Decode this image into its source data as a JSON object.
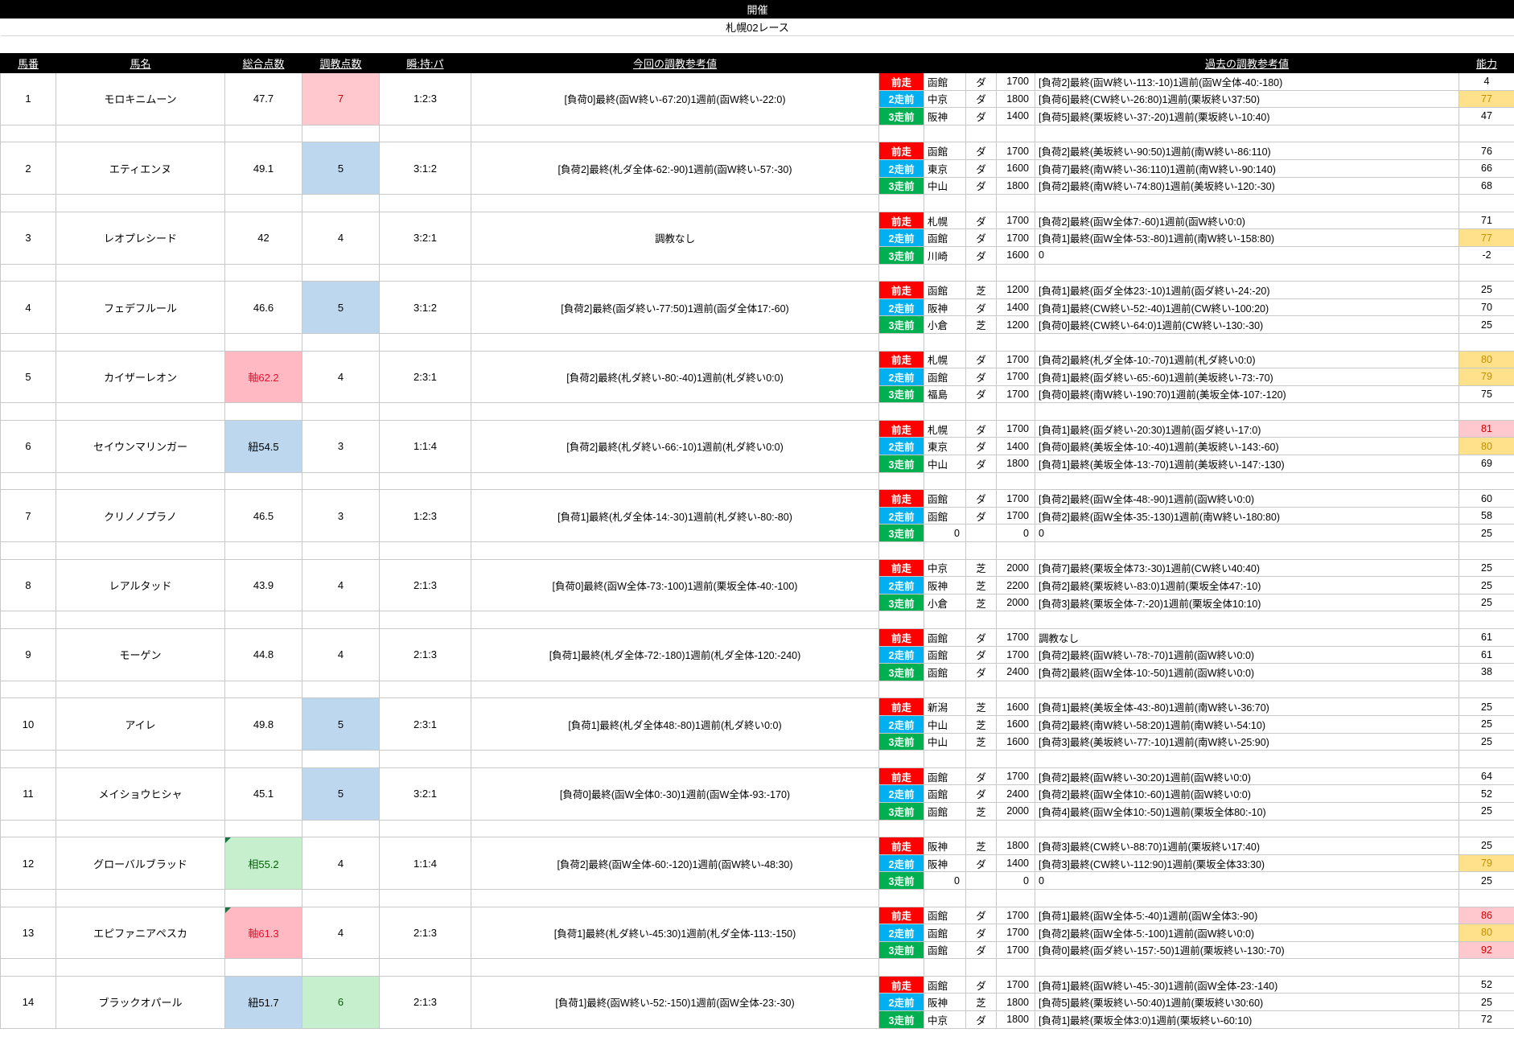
{
  "header": {
    "title": "開催",
    "race": "札幌02レース"
  },
  "columns": {
    "num": "馬番",
    "name": "馬名",
    "total": "総合点数",
    "training": "調教点数",
    "ratio": "瞬:持:パ",
    "current": "今回の調教参考値",
    "past": "過去の調教参考値",
    "ability": "能力"
  },
  "run_labels": [
    "前走",
    "2走前",
    "3走前"
  ],
  "colors": {
    "badge_last_run": "#ff0000",
    "badge_second_run": "#00b0f0",
    "badge_third_run": "#00b050",
    "highlight_pink": "#ffc7ce",
    "highlight_blue": "#bdd7ee",
    "highlight_green": "#c6efce",
    "highlight_yellow": "#ffe18c"
  },
  "horses": [
    {
      "num": "1",
      "name": "モロキニムーン",
      "total": "47.7",
      "total_style": "",
      "marker": false,
      "training": "7",
      "training_style": "pink",
      "ratio": "1:2:3",
      "current": "[負荷0]最終(函W終い-67:20)1週前(函W終い-22:0)",
      "past": [
        {
          "track": "函館",
          "surface": "ダ",
          "dist": "1700",
          "text": "[負荷2]最終(函W終い-113:-10)1週前(函W全体-40:-180)",
          "ability": "4",
          "ability_style": ""
        },
        {
          "track": "中京",
          "surface": "ダ",
          "dist": "1800",
          "text": "[負荷6]最終(CW終い-26:80)1週前(栗坂終い37:50)",
          "ability": "77",
          "ability_style": "yellow"
        },
        {
          "track": "阪神",
          "surface": "ダ",
          "dist": "1400",
          "text": "[負荷5]最終(栗坂終い-37:-20)1週前(栗坂終い-10:40)",
          "ability": "47",
          "ability_style": ""
        }
      ]
    },
    {
      "num": "2",
      "name": "エティエンヌ",
      "total": "49.1",
      "total_style": "",
      "marker": false,
      "training": "5",
      "training_style": "blue",
      "ratio": "3:1:2",
      "current": "[負荷2]最終(札ダ全体-62:-90)1週前(函W終い-57:-30)",
      "past": [
        {
          "track": "函館",
          "surface": "ダ",
          "dist": "1700",
          "text": "[負荷2]最終(美坂終い-90:50)1週前(南W終い-86:110)",
          "ability": "76",
          "ability_style": ""
        },
        {
          "track": "東京",
          "surface": "ダ",
          "dist": "1600",
          "text": "[負荷7]最終(南W終い-36:110)1週前(南W終い-90:140)",
          "ability": "66",
          "ability_style": ""
        },
        {
          "track": "中山",
          "surface": "ダ",
          "dist": "1800",
          "text": "[負荷2]最終(南W終い-74:80)1週前(美坂終い-120:-30)",
          "ability": "68",
          "ability_style": ""
        }
      ]
    },
    {
      "num": "3",
      "name": "レオプレシード",
      "total": "42",
      "total_style": "",
      "marker": false,
      "training": "4",
      "training_style": "",
      "ratio": "3:2:1",
      "current": "調教なし",
      "past": [
        {
          "track": "札幌",
          "surface": "ダ",
          "dist": "1700",
          "text": "[負荷2]最終(函W全体7:-60)1週前(函W終い0:0)",
          "ability": "71",
          "ability_style": ""
        },
        {
          "track": "函館",
          "surface": "ダ",
          "dist": "1700",
          "text": "[負荷1]最終(函W全体-53:-80)1週前(南W終い-158:80)",
          "ability": "77",
          "ability_style": "yellow"
        },
        {
          "track": "川崎",
          "surface": "ダ",
          "dist": "1600",
          "text": "0",
          "ability": "-2",
          "ability_style": ""
        }
      ]
    },
    {
      "num": "4",
      "name": "フェデフルール",
      "total": "46.6",
      "total_style": "",
      "marker": false,
      "training": "5",
      "training_style": "blue",
      "ratio": "3:1:2",
      "current": "[負荷2]最終(函ダ終い-77:50)1週前(函ダ全体17:-60)",
      "past": [
        {
          "track": "函館",
          "surface": "芝",
          "dist": "1200",
          "text": "[負荷1]最終(函ダ全体23:-10)1週前(函ダ終い-24:-20)",
          "ability": "25",
          "ability_style": ""
        },
        {
          "track": "阪神",
          "surface": "ダ",
          "dist": "1400",
          "text": "[負荷1]最終(CW終い-52:-40)1週前(CW終い-100:20)",
          "ability": "70",
          "ability_style": ""
        },
        {
          "track": "小倉",
          "surface": "芝",
          "dist": "1200",
          "text": "[負荷0]最終(CW終い-64:0)1週前(CW終い-130:-30)",
          "ability": "25",
          "ability_style": ""
        }
      ]
    },
    {
      "num": "5",
      "name": "カイザーレオン",
      "total": "軸62.2",
      "total_style": "pink",
      "marker": false,
      "training": "4",
      "training_style": "",
      "ratio": "2:3:1",
      "current": "[負荷2]最終(札ダ終い-80:-40)1週前(札ダ終い0:0)",
      "past": [
        {
          "track": "札幌",
          "surface": "ダ",
          "dist": "1700",
          "text": "[負荷2]最終(札ダ全体-10:-70)1週前(札ダ終い0:0)",
          "ability": "80",
          "ability_style": "yellow"
        },
        {
          "track": "函館",
          "surface": "ダ",
          "dist": "1700",
          "text": "[負荷1]最終(函ダ終い-65:-60)1週前(美坂終い-73:-70)",
          "ability": "79",
          "ability_style": "yellow"
        },
        {
          "track": "福島",
          "surface": "ダ",
          "dist": "1700",
          "text": "[負荷0]最終(南W終い-190:70)1週前(美坂全体-107:-120)",
          "ability": "75",
          "ability_style": ""
        }
      ]
    },
    {
      "num": "6",
      "name": "セイウンマリンガー",
      "total": "紐54.5",
      "total_style": "blue",
      "marker": false,
      "training": "3",
      "training_style": "",
      "ratio": "1:1:4",
      "current": "[負荷2]最終(札ダ終い-66:-10)1週前(札ダ終い0:0)",
      "past": [
        {
          "track": "札幌",
          "surface": "ダ",
          "dist": "1700",
          "text": "[負荷1]最終(函ダ終い-20:30)1週前(函ダ終い-17:0)",
          "ability": "81",
          "ability_style": "pink"
        },
        {
          "track": "東京",
          "surface": "ダ",
          "dist": "1400",
          "text": "[負荷0]最終(美坂全体-10:-40)1週前(美坂終い-143:-60)",
          "ability": "80",
          "ability_style": "yellow"
        },
        {
          "track": "中山",
          "surface": "ダ",
          "dist": "1800",
          "text": "[負荷1]最終(美坂全体-13:-70)1週前(美坂終い-147:-130)",
          "ability": "69",
          "ability_style": ""
        }
      ]
    },
    {
      "num": "7",
      "name": "クリノノプラノ",
      "total": "46.5",
      "total_style": "",
      "marker": false,
      "training": "3",
      "training_style": "",
      "ratio": "1:2:3",
      "current": "[負荷1]最終(札ダ全体-14:-30)1週前(札ダ終い-80:-80)",
      "past": [
        {
          "track": "函館",
          "surface": "ダ",
          "dist": "1700",
          "text": "[負荷2]最終(函W全体-48:-90)1週前(函W終い0:0)",
          "ability": "60",
          "ability_style": ""
        },
        {
          "track": "函館",
          "surface": "ダ",
          "dist": "1700",
          "text": "[負荷2]最終(函W全体-35:-130)1週前(南W終い-180:80)",
          "ability": "58",
          "ability_style": ""
        },
        {
          "track": "0",
          "surface": "",
          "dist": "0",
          "text": "0",
          "ability": "25",
          "ability_style": ""
        }
      ]
    },
    {
      "num": "8",
      "name": "レアルタッド",
      "total": "43.9",
      "total_style": "",
      "marker": false,
      "training": "4",
      "training_style": "",
      "ratio": "2:1:3",
      "current": "[負荷0]最終(函W全体-73:-100)1週前(栗坂全体-40:-100)",
      "past": [
        {
          "track": "中京",
          "surface": "芝",
          "dist": "2000",
          "text": "[負荷7]最終(栗坂全体73:-30)1週前(CW終い40:40)",
          "ability": "25",
          "ability_style": ""
        },
        {
          "track": "阪神",
          "surface": "芝",
          "dist": "2200",
          "text": "[負荷2]最終(栗坂終い-83:0)1週前(栗坂全体47:-10)",
          "ability": "25",
          "ability_style": ""
        },
        {
          "track": "小倉",
          "surface": "芝",
          "dist": "2000",
          "text": "[負荷3]最終(栗坂全体-7:-20)1週前(栗坂全体10:10)",
          "ability": "25",
          "ability_style": ""
        }
      ]
    },
    {
      "num": "9",
      "name": "モーゲン",
      "total": "44.8",
      "total_style": "",
      "marker": false,
      "training": "4",
      "training_style": "",
      "ratio": "2:1:3",
      "current": "[負荷1]最終(札ダ全体-72:-180)1週前(札ダ全体-120:-240)",
      "past": [
        {
          "track": "函館",
          "surface": "ダ",
          "dist": "1700",
          "text": "調教なし",
          "ability": "61",
          "ability_style": ""
        },
        {
          "track": "函館",
          "surface": "ダ",
          "dist": "1700",
          "text": "[負荷2]最終(函W終い-78:-70)1週前(函W終い0:0)",
          "ability": "61",
          "ability_style": ""
        },
        {
          "track": "函館",
          "surface": "ダ",
          "dist": "2400",
          "text": "[負荷2]最終(函W全体-10:-50)1週前(函W終い0:0)",
          "ability": "38",
          "ability_style": ""
        }
      ]
    },
    {
      "num": "10",
      "name": "アイレ",
      "total": "49.8",
      "total_style": "",
      "marker": false,
      "training": "5",
      "training_style": "blue",
      "ratio": "2:3:1",
      "current": "[負荷1]最終(札ダ全体48:-80)1週前(札ダ終い0:0)",
      "past": [
        {
          "track": "新潟",
          "surface": "芝",
          "dist": "1600",
          "text": "[負荷1]最終(美坂全体-43:-80)1週前(南W終い-36:70)",
          "ability": "25",
          "ability_style": ""
        },
        {
          "track": "中山",
          "surface": "芝",
          "dist": "1600",
          "text": "[負荷2]最終(南W終い-58:20)1週前(南W終い-54:10)",
          "ability": "25",
          "ability_style": ""
        },
        {
          "track": "中山",
          "surface": "芝",
          "dist": "1600",
          "text": "[負荷3]最終(美坂終い-77:-10)1週前(南W終い-25:90)",
          "ability": "25",
          "ability_style": ""
        }
      ]
    },
    {
      "num": "11",
      "name": "メイショウヒシャ",
      "total": "45.1",
      "total_style": "",
      "marker": false,
      "training": "5",
      "training_style": "blue",
      "ratio": "3:2:1",
      "current": "[負荷0]最終(函W全体0:-30)1週前(函W全体-93:-170)",
      "past": [
        {
          "track": "函館",
          "surface": "ダ",
          "dist": "1700",
          "text": "[負荷2]最終(函W終い-30:20)1週前(函W終い0:0)",
          "ability": "64",
          "ability_style": ""
        },
        {
          "track": "函館",
          "surface": "ダ",
          "dist": "2400",
          "text": "[負荷2]最終(函W全体10:-60)1週前(函W終い0:0)",
          "ability": "52",
          "ability_style": ""
        },
        {
          "track": "函館",
          "surface": "芝",
          "dist": "2000",
          "text": "[負荷4]最終(函W全体10:-50)1週前(栗坂全体80:-10)",
          "ability": "25",
          "ability_style": ""
        }
      ]
    },
    {
      "num": "12",
      "name": "グローバルブラッド",
      "total": "相55.2",
      "total_style": "green",
      "marker": true,
      "training": "4",
      "training_style": "",
      "ratio": "1:1:4",
      "current": "[負荷2]最終(函W全体-60:-120)1週前(函W終い-48:30)",
      "past": [
        {
          "track": "阪神",
          "surface": "芝",
          "dist": "1800",
          "text": "[負荷3]最終(CW終い-88:70)1週前(栗坂終い17:40)",
          "ability": "25",
          "ability_style": ""
        },
        {
          "track": "阪神",
          "surface": "ダ",
          "dist": "1400",
          "text": "[負荷3]最終(CW終い-112:90)1週前(栗坂全体33:30)",
          "ability": "79",
          "ability_style": "yellow"
        },
        {
          "track": "0",
          "surface": "",
          "dist": "0",
          "text": "0",
          "ability": "25",
          "ability_style": ""
        }
      ]
    },
    {
      "num": "13",
      "name": "エピファニアペスカ",
      "total": "軸61.3",
      "total_style": "pink",
      "marker": true,
      "training": "4",
      "training_style": "",
      "ratio": "2:1:3",
      "current": "[負荷1]最終(札ダ終い-45:30)1週前(札ダ全体-113:-150)",
      "past": [
        {
          "track": "函館",
          "surface": "ダ",
          "dist": "1700",
          "text": "[負荷1]最終(函W全体-5:-40)1週前(函W全体3:-90)",
          "ability": "86",
          "ability_style": "pink"
        },
        {
          "track": "函館",
          "surface": "ダ",
          "dist": "1700",
          "text": "[負荷2]最終(函W全体-5:-100)1週前(函W終い0:0)",
          "ability": "80",
          "ability_style": "yellow"
        },
        {
          "track": "函館",
          "surface": "ダ",
          "dist": "1700",
          "text": "[負荷0]最終(函ダ終い-157:-50)1週前(栗坂終い-130:-70)",
          "ability": "92",
          "ability_style": "pink"
        }
      ]
    },
    {
      "num": "14",
      "name": "ブラックオパール",
      "total": "紐51.7",
      "total_style": "blue",
      "marker": false,
      "training": "6",
      "training_style": "green",
      "ratio": "2:1:3",
      "current": "[負荷1]最終(函W終い-52:-150)1週前(函W全体-23:-30)",
      "past": [
        {
          "track": "函館",
          "surface": "ダ",
          "dist": "1700",
          "text": "[負荷1]最終(函W終い-45:-30)1週前(函W全体-23:-140)",
          "ability": "52",
          "ability_style": ""
        },
        {
          "track": "阪神",
          "surface": "芝",
          "dist": "1800",
          "text": "[負荷5]最終(栗坂終い-50:40)1週前(栗坂終い30:60)",
          "ability": "25",
          "ability_style": ""
        },
        {
          "track": "中京",
          "surface": "ダ",
          "dist": "1800",
          "text": "[負荷1]最終(栗坂全体3:0)1週前(栗坂終い-60:10)",
          "ability": "72",
          "ability_style": ""
        }
      ]
    }
  ]
}
